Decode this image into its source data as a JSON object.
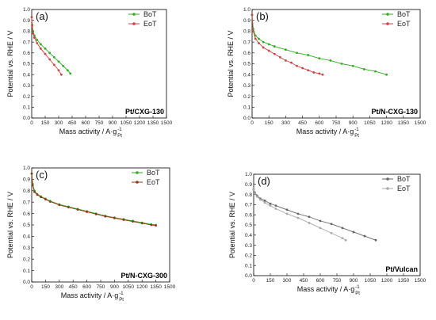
{
  "chart_data": [
    {
      "type": "line",
      "panel_label": "(a)",
      "name": "Pt/CXG-130",
      "xlabel": "Mass activity / A·g",
      "xlabel_sup": "-1",
      "xlabel_sub": "Pt",
      "ylabel": "Potential vs. RHE / V",
      "xlim": [
        0,
        1500
      ],
      "ylim": [
        0.0,
        1.0
      ],
      "xticks": [
        0,
        150,
        300,
        450,
        600,
        750,
        900,
        1050,
        1200,
        1350,
        1500
      ],
      "yticks": [
        0.0,
        0.1,
        0.2,
        0.3,
        0.4,
        0.5,
        0.6,
        0.7,
        0.8,
        0.9,
        1.0
      ],
      "legend_position": "top-right",
      "series": [
        {
          "name": "BoT",
          "color": "#33aa22",
          "marker": "circle",
          "x": [
            0,
            5,
            15,
            30,
            60,
            100,
            150,
            200,
            250,
            300,
            350,
            400,
            430
          ],
          "y": [
            0.93,
            0.86,
            0.8,
            0.76,
            0.72,
            0.68,
            0.64,
            0.6,
            0.56,
            0.52,
            0.48,
            0.44,
            0.41
          ]
        },
        {
          "name": "EoT",
          "color": "#cc4444",
          "marker": "circle",
          "x": [
            0,
            5,
            15,
            30,
            60,
            100,
            150,
            200,
            250,
            300,
            330
          ],
          "y": [
            0.93,
            0.85,
            0.78,
            0.74,
            0.69,
            0.64,
            0.59,
            0.54,
            0.49,
            0.44,
            0.4
          ]
        }
      ]
    },
    {
      "type": "line",
      "panel_label": "(b)",
      "name": "Pt/N-CXG-130",
      "xlabel": "Mass activity / A·g",
      "xlabel_sup": "-1",
      "xlabel_sub": "Pt",
      "ylabel": "Potential vs. RHE / V",
      "xlim": [
        0,
        1500
      ],
      "ylim": [
        0.0,
        1.0
      ],
      "xticks": [
        0,
        150,
        300,
        450,
        600,
        750,
        900,
        1050,
        1200,
        1350,
        1500
      ],
      "yticks": [
        0.0,
        0.1,
        0.2,
        0.3,
        0.4,
        0.5,
        0.6,
        0.7,
        0.8,
        0.9,
        1.0
      ],
      "legend_position": "top-right",
      "series": [
        {
          "name": "BoT",
          "color": "#33aa22",
          "marker": "circle",
          "x": [
            0,
            10,
            30,
            60,
            100,
            150,
            200,
            300,
            400,
            500,
            600,
            700,
            800,
            900,
            1000,
            1100,
            1200
          ],
          "y": [
            0.95,
            0.82,
            0.76,
            0.73,
            0.7,
            0.68,
            0.66,
            0.63,
            0.6,
            0.58,
            0.55,
            0.53,
            0.5,
            0.48,
            0.45,
            0.43,
            0.4
          ]
        },
        {
          "name": "EoT",
          "color": "#cc4444",
          "marker": "circle",
          "x": [
            0,
            10,
            30,
            60,
            100,
            150,
            200,
            250,
            300,
            350,
            400,
            450,
            500,
            550,
            600,
            630
          ],
          "y": [
            0.95,
            0.8,
            0.73,
            0.69,
            0.65,
            0.62,
            0.59,
            0.56,
            0.53,
            0.51,
            0.48,
            0.46,
            0.44,
            0.42,
            0.41,
            0.4
          ]
        }
      ]
    },
    {
      "type": "line",
      "panel_label": "(c)",
      "name": "Pt/N-CXG-300",
      "xlabel": "Mass activity / A·g",
      "xlabel_sup": "-1",
      "xlabel_sub": "Pt",
      "ylabel": "Potential vs. RHE / V",
      "xlim": [
        0,
        1500
      ],
      "ylim": [
        0.0,
        1.0
      ],
      "xticks": [
        0,
        150,
        300,
        450,
        600,
        750,
        900,
        1050,
        1200,
        1350,
        1500
      ],
      "yticks": [
        0.0,
        0.1,
        0.2,
        0.3,
        0.4,
        0.5,
        0.6,
        0.7,
        0.8,
        0.9,
        1.0
      ],
      "legend_position": "top-right",
      "series": [
        {
          "name": "BoT",
          "color": "#33aa22",
          "marker": "circle",
          "x": [
            0,
            10,
            30,
            60,
            100,
            150,
            200,
            300,
            400,
            500,
            600,
            700,
            800,
            900,
            1000,
            1100,
            1200,
            1300,
            1350
          ],
          "y": [
            0.95,
            0.86,
            0.8,
            0.77,
            0.75,
            0.73,
            0.71,
            0.68,
            0.66,
            0.64,
            0.62,
            0.6,
            0.58,
            0.565,
            0.55,
            0.535,
            0.52,
            0.505,
            0.5
          ]
        },
        {
          "name": "EoT",
          "color": "#8b3a1a",
          "marker": "circle",
          "x": [
            0,
            10,
            30,
            60,
            100,
            150,
            200,
            300,
            400,
            500,
            600,
            700,
            800,
            900,
            1000,
            1100,
            1200,
            1300,
            1350
          ],
          "y": [
            0.95,
            0.85,
            0.79,
            0.765,
            0.745,
            0.725,
            0.705,
            0.675,
            0.655,
            0.635,
            0.615,
            0.595,
            0.575,
            0.56,
            0.545,
            0.53,
            0.515,
            0.5,
            0.495
          ]
        }
      ]
    },
    {
      "type": "line",
      "panel_label": "(d)",
      "name": "Pt/Vulcan",
      "xlabel": "Mass activity / A·g",
      "xlabel_sup": "-1",
      "xlabel_sub": "Pt",
      "ylabel": "Potential vs. RHE / V",
      "xlim": [
        0,
        1500
      ],
      "ylim": [
        0.0,
        1.0
      ],
      "xticks": [
        0,
        150,
        300,
        450,
        600,
        750,
        900,
        1050,
        1200,
        1350,
        1500
      ],
      "yticks": [
        0.0,
        0.1,
        0.2,
        0.3,
        0.4,
        0.5,
        0.6,
        0.7,
        0.8,
        0.9,
        1.0
      ],
      "legend_position": "top-right",
      "series": [
        {
          "name": "BoT",
          "color": "#666666",
          "marker": "circle",
          "x": [
            0,
            10,
            30,
            60,
            100,
            150,
            200,
            300,
            400,
            500,
            600,
            700,
            800,
            900,
            1000,
            1100
          ],
          "y": [
            0.85,
            0.82,
            0.79,
            0.76,
            0.74,
            0.71,
            0.69,
            0.65,
            0.61,
            0.58,
            0.54,
            0.51,
            0.47,
            0.43,
            0.39,
            0.35
          ]
        },
        {
          "name": "EoT",
          "color": "#aaaaaa",
          "marker": "circle",
          "x": [
            0,
            10,
            30,
            60,
            100,
            150,
            200,
            300,
            400,
            500,
            600,
            700,
            800,
            830
          ],
          "y": [
            0.85,
            0.81,
            0.78,
            0.75,
            0.72,
            0.69,
            0.66,
            0.61,
            0.57,
            0.52,
            0.47,
            0.42,
            0.37,
            0.35
          ]
        }
      ]
    }
  ]
}
